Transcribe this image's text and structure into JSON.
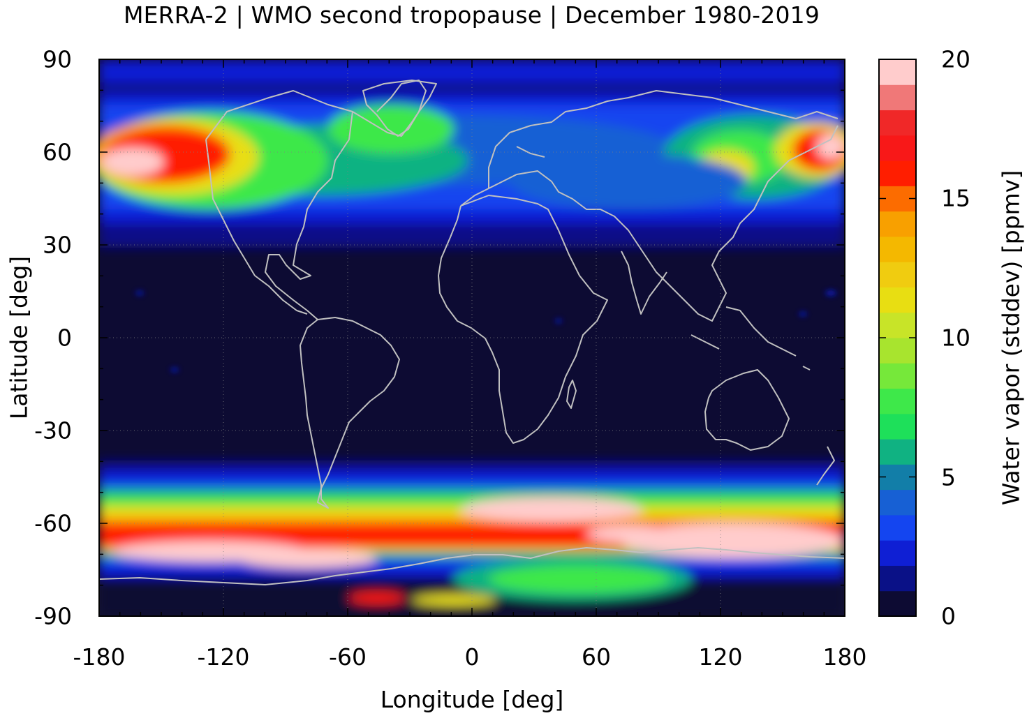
{
  "title": "MERRA-2 | WMO second tropopause | December 1980-2019",
  "x_axis": {
    "label": "Longitude [deg]",
    "ticks": [
      "-180",
      "-120",
      "-60",
      "0",
      "60",
      "120",
      "180"
    ]
  },
  "y_axis": {
    "label": "Latitude [deg]",
    "ticks": [
      "90",
      "60",
      "30",
      "0",
      "-30",
      "-60",
      "-90"
    ]
  },
  "colorbar": {
    "label": "Water vapor (stddev) [ppmv]",
    "ticks": [
      "20",
      "15",
      "10",
      "5",
      "0"
    ],
    "range": [
      0,
      20
    ],
    "levels": [
      "#0d0b33",
      "#0a1187",
      "#0f1fd4",
      "#1445f0",
      "#1760d4",
      "#127ea8",
      "#10b282",
      "#1ee05a",
      "#3ee84a",
      "#76e83a",
      "#a8e42e",
      "#c8e428",
      "#e8de12",
      "#f0cc10",
      "#f4b800",
      "#f8a000",
      "#fc6c00",
      "#ff1e00",
      "#f81818",
      "#f02828",
      "#f07878",
      "#ffcccc"
    ]
  },
  "map": {
    "background_color": "#0d0b33",
    "coastline_color": "#c0c0c0",
    "lon_range": [
      -180,
      180
    ],
    "lat_range": [
      -90,
      90
    ],
    "grid": "dotted"
  }
}
